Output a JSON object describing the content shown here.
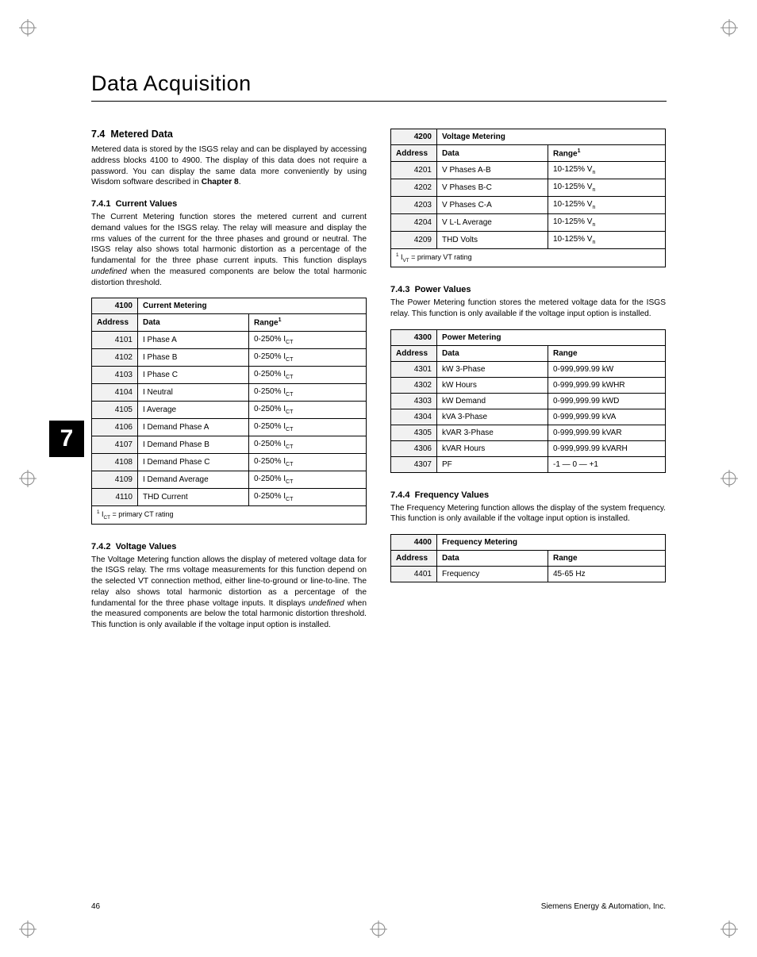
{
  "chapter_title": "Data Acquisition",
  "chapter_tab": "7",
  "page_number": "46",
  "footer_company": "Siemens Energy & Automation, Inc.",
  "sec74": {
    "num": "7.4",
    "title": "Metered Data",
    "para": "Metered data is stored by the ISGS relay and can be displayed by accessing address blocks 4100 to 4900. The display of this data does not require a password. You can display the same data more conveniently by using Wisdom software described in ",
    "para_strong": "Chapter 8",
    "para_end": "."
  },
  "sec741": {
    "num": "7.4.1",
    "title": "Current Values",
    "para": "The Current Metering function stores the metered current and current demand values for the ISGS relay. The relay will measure and display the rms values of the current for the three phases and ground or neutral. The ISGS relay also shows total harmonic distortion as a percentage of the fundamental for the three phase current inputs. This function displays ",
    "para_em": "undefined",
    "para_end": " when the measured components are below the total harmonic distortion threshold."
  },
  "sec742": {
    "num": "7.4.2",
    "title": "Voltage Values",
    "para": "The Voltage Metering function allows the display of metered voltage data for the ISGS relay. The rms voltage measurements for this function depend on the selected VT connection method, either line-to-ground or line-to-line. The relay also shows total harmonic distortion as a percentage of the fundamental for the three phase voltage inputs. It displays ",
    "para_em": "undefined",
    "para_end": " when the measured components are below the total harmonic distortion threshold. This function is only available if the voltage input option is installed."
  },
  "sec743": {
    "num": "7.4.3",
    "title": "Power Values",
    "para": "The Power Metering function stores the metered voltage data for the ISGS relay. This function is only available if the voltage input option is installed."
  },
  "sec744": {
    "num": "7.4.4",
    "title": "Frequency Values",
    "para": "The Frequency Metering function allows the display of the system frequency. This function is only available if the voltage input option is installed."
  },
  "table_current": {
    "block": "4100",
    "block_title": "Current Metering",
    "h_addr": "Address",
    "h_data": "Data",
    "h_range": "Range",
    "range_sup": "1",
    "rows": [
      {
        "a": "4101",
        "d": "I Phase A",
        "r": "0-250% I",
        "sub": "CT"
      },
      {
        "a": "4102",
        "d": "I Phase B",
        "r": "0-250% I",
        "sub": "CT"
      },
      {
        "a": "4103",
        "d": "I Phase C",
        "r": "0-250% I",
        "sub": "CT"
      },
      {
        "a": "4104",
        "d": "I Neutral",
        "r": "0-250% I",
        "sub": "CT"
      },
      {
        "a": "4105",
        "d": "I Average",
        "r": "0-250% I",
        "sub": "CT"
      },
      {
        "a": "4106",
        "d": "I Demand Phase A",
        "r": "0-250% I",
        "sub": "CT"
      },
      {
        "a": "4107",
        "d": "I Demand Phase B",
        "r": "0-250% I",
        "sub": "CT"
      },
      {
        "a": "4108",
        "d": "I Demand Phase C",
        "r": "0-250% I",
        "sub": "CT"
      },
      {
        "a": "4109",
        "d": "I Demand Average",
        "r": "0-250% I",
        "sub": "CT"
      },
      {
        "a": "4110",
        "d": "THD Current",
        "r": "0-250% I",
        "sub": "CT"
      }
    ],
    "foot_sup": "1",
    "foot_pre": " I",
    "foot_sub": "CT",
    "foot_post": " = primary CT rating"
  },
  "table_voltage": {
    "block": "4200",
    "block_title": "Voltage Metering",
    "h_addr": "Address",
    "h_data": "Data",
    "h_range": "Range",
    "range_sup": "1",
    "rows": [
      {
        "a": "4201",
        "d": "V Phases A-B",
        "r": "10-125% V",
        "sub": "n"
      },
      {
        "a": "4202",
        "d": "V Phases B-C",
        "r": "10-125% V",
        "sub": "n"
      },
      {
        "a": "4203",
        "d": "V Phases C-A",
        "r": "10-125% V",
        "sub": "n"
      },
      {
        "a": "4204",
        "d": "V L-L Average",
        "r": "10-125% V",
        "sub": "n"
      },
      {
        "a": "4209",
        "d": "THD Volts",
        "r": "10-125% V",
        "sub": "n"
      }
    ],
    "foot_sup": "1",
    "foot_pre": " I",
    "foot_sub": "VT",
    "foot_post": " = primary VT rating"
  },
  "table_power": {
    "block": "4300",
    "block_title": "Power Metering",
    "h_addr": "Address",
    "h_data": "Data",
    "h_range": "Range",
    "rows": [
      {
        "a": "4301",
        "d": "kW 3-Phase",
        "r": "0-999,999.99 kW"
      },
      {
        "a": "4302",
        "d": "kW Hours",
        "r": "0-999,999.99 kWHR"
      },
      {
        "a": "4303",
        "d": "kW Demand",
        "r": "0-999,999.99 kWD"
      },
      {
        "a": "4304",
        "d": "kVA 3-Phase",
        "r": "0-999,999.99 kVA"
      },
      {
        "a": "4305",
        "d": "kVAR 3-Phase",
        "r": "0-999,999.99 kVAR"
      },
      {
        "a": "4306",
        "d": "kVAR Hours",
        "r": "0-999,999.99 kVARH"
      },
      {
        "a": "4307",
        "d": "PF",
        "r": "-1 — 0 — +1"
      }
    ]
  },
  "table_freq": {
    "block": "4400",
    "block_title": "Frequency Metering",
    "h_addr": "Address",
    "h_data": "Data",
    "h_range": "Range",
    "rows": [
      {
        "a": "4401",
        "d": "Frequency",
        "r": "45-65 Hz"
      }
    ]
  }
}
